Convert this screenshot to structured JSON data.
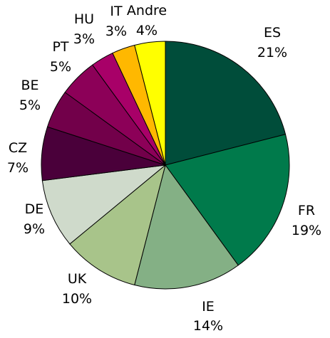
{
  "chart_data": {
    "type": "pie",
    "slices": [
      {
        "label": "ES",
        "value": 21,
        "display": "21%",
        "color": "#004d3a"
      },
      {
        "label": "FR",
        "value": 19,
        "display": "19%",
        "color": "#007a4b"
      },
      {
        "label": "IE",
        "value": 14,
        "display": "14%",
        "color": "#84b085"
      },
      {
        "label": "UK",
        "value": 10,
        "display": "10%",
        "color": "#a8c48a"
      },
      {
        "label": "DE",
        "value": 9,
        "display": "9%",
        "color": "#cfdacb"
      },
      {
        "label": "CZ",
        "value": 7,
        "display": "7%",
        "color": "#4a003a"
      },
      {
        "label": "BE",
        "value": 5,
        "display": "5%",
        "color": "#72004a"
      },
      {
        "label": "PT",
        "value": 5,
        "display": "5%",
        "color": "#8c0058"
      },
      {
        "label": "HU",
        "value": 3,
        "display": "3%",
        "color": "#a80068"
      },
      {
        "label": "IT",
        "value": 3,
        "display": "3%",
        "color": "#ffb800"
      },
      {
        "label": "Andre",
        "value": 4,
        "display": "4%",
        "color": "#ffff00"
      }
    ],
    "start_angle": "12 o'clock",
    "direction": "clockwise",
    "legend": "none",
    "title": ""
  }
}
